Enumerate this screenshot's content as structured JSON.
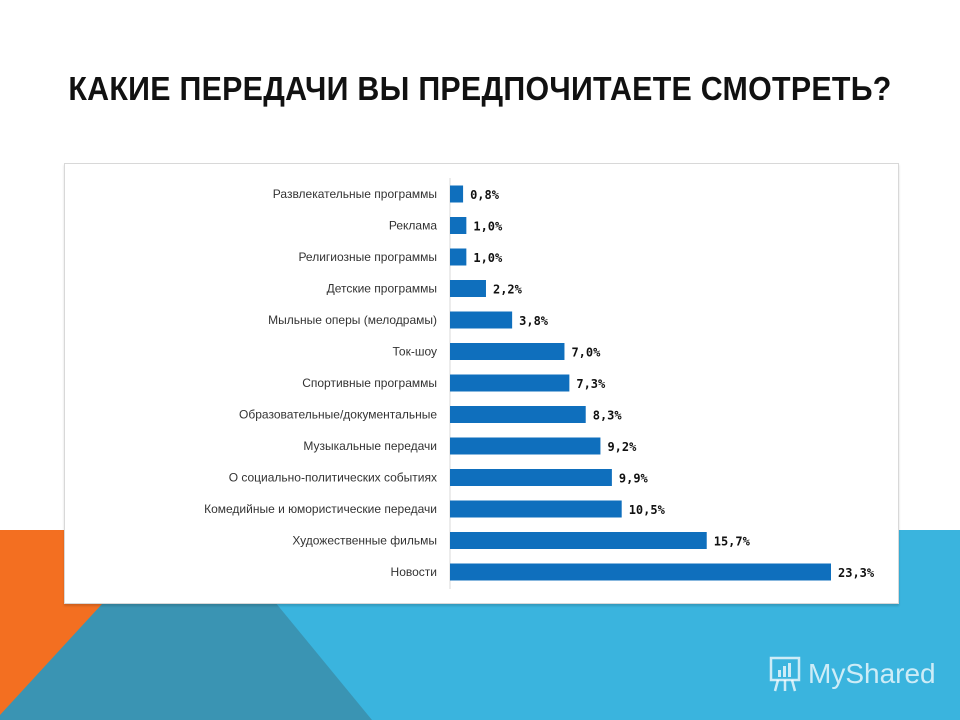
{
  "slide": {
    "title": "КАКИЕ ПЕРЕДАЧИ ВЫ ПРЕДПОЧИТАЕТЕ СМОТРЕТЬ?"
  },
  "watermark": {
    "text": "MyShared",
    "icon": "presentation-board-icon"
  },
  "colors": {
    "bar": "#0f6fbd",
    "orange": "#f36f21",
    "teal": "#3a94b3",
    "light_blue": "#3ab4de"
  },
  "chart_data": {
    "type": "bar",
    "orientation": "horizontal",
    "categories": [
      "Развлекательные программы",
      "Реклама",
      "Религиозные программы",
      "Детские программы",
      "Мыльные оперы (мелодрамы)",
      "Ток-шоу",
      "Спортивные программы",
      "Образовательные/документальные",
      "Музыкальные передачи",
      "О социально-политических событиях",
      "Комедийные и юмористические передачи",
      "Художественные фильмы",
      "Новости"
    ],
    "values": [
      0.8,
      1.0,
      1.0,
      2.2,
      3.8,
      7.0,
      7.3,
      8.3,
      9.2,
      9.9,
      10.5,
      15.7,
      23.3
    ],
    "data_labels": [
      "0,8%",
      "1,0%",
      "1,0%",
      "2,2%",
      "3,8%",
      "7,0%",
      "7,3%",
      "8,3%",
      "9,2%",
      "9,9%",
      "10,5%",
      "15,7%",
      "23,3%"
    ],
    "unit": "%",
    "grid": false,
    "legend": "none"
  }
}
